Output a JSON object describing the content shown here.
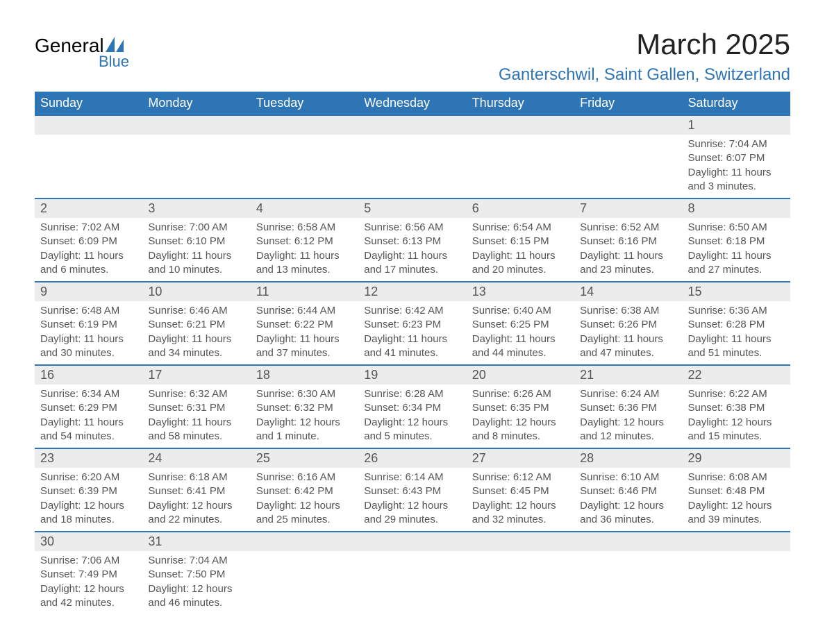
{
  "logo": {
    "text1": "General",
    "text2": "Blue",
    "icon_color": "#2e75b6"
  },
  "title": "March 2025",
  "location": "Ganterschwil, Saint Gallen, Switzerland",
  "colors": {
    "header_bg": "#2e75b6",
    "header_text": "#ffffff",
    "daynum_bg": "#ececec",
    "text": "#555555",
    "row_divider": "#2e75b6"
  },
  "day_headers": [
    "Sunday",
    "Monday",
    "Tuesday",
    "Wednesday",
    "Thursday",
    "Friday",
    "Saturday"
  ],
  "weeks": [
    [
      null,
      null,
      null,
      null,
      null,
      null,
      {
        "n": "1",
        "sr": "7:04 AM",
        "ss": "6:07 PM",
        "dl": "11 hours and 3 minutes."
      }
    ],
    [
      {
        "n": "2",
        "sr": "7:02 AM",
        "ss": "6:09 PM",
        "dl": "11 hours and 6 minutes."
      },
      {
        "n": "3",
        "sr": "7:00 AM",
        "ss": "6:10 PM",
        "dl": "11 hours and 10 minutes."
      },
      {
        "n": "4",
        "sr": "6:58 AM",
        "ss": "6:12 PM",
        "dl": "11 hours and 13 minutes."
      },
      {
        "n": "5",
        "sr": "6:56 AM",
        "ss": "6:13 PM",
        "dl": "11 hours and 17 minutes."
      },
      {
        "n": "6",
        "sr": "6:54 AM",
        "ss": "6:15 PM",
        "dl": "11 hours and 20 minutes."
      },
      {
        "n": "7",
        "sr": "6:52 AM",
        "ss": "6:16 PM",
        "dl": "11 hours and 23 minutes."
      },
      {
        "n": "8",
        "sr": "6:50 AM",
        "ss": "6:18 PM",
        "dl": "11 hours and 27 minutes."
      }
    ],
    [
      {
        "n": "9",
        "sr": "6:48 AM",
        "ss": "6:19 PM",
        "dl": "11 hours and 30 minutes."
      },
      {
        "n": "10",
        "sr": "6:46 AM",
        "ss": "6:21 PM",
        "dl": "11 hours and 34 minutes."
      },
      {
        "n": "11",
        "sr": "6:44 AM",
        "ss": "6:22 PM",
        "dl": "11 hours and 37 minutes."
      },
      {
        "n": "12",
        "sr": "6:42 AM",
        "ss": "6:23 PM",
        "dl": "11 hours and 41 minutes."
      },
      {
        "n": "13",
        "sr": "6:40 AM",
        "ss": "6:25 PM",
        "dl": "11 hours and 44 minutes."
      },
      {
        "n": "14",
        "sr": "6:38 AM",
        "ss": "6:26 PM",
        "dl": "11 hours and 47 minutes."
      },
      {
        "n": "15",
        "sr": "6:36 AM",
        "ss": "6:28 PM",
        "dl": "11 hours and 51 minutes."
      }
    ],
    [
      {
        "n": "16",
        "sr": "6:34 AM",
        "ss": "6:29 PM",
        "dl": "11 hours and 54 minutes."
      },
      {
        "n": "17",
        "sr": "6:32 AM",
        "ss": "6:31 PM",
        "dl": "11 hours and 58 minutes."
      },
      {
        "n": "18",
        "sr": "6:30 AM",
        "ss": "6:32 PM",
        "dl": "12 hours and 1 minute."
      },
      {
        "n": "19",
        "sr": "6:28 AM",
        "ss": "6:34 PM",
        "dl": "12 hours and 5 minutes."
      },
      {
        "n": "20",
        "sr": "6:26 AM",
        "ss": "6:35 PM",
        "dl": "12 hours and 8 minutes."
      },
      {
        "n": "21",
        "sr": "6:24 AM",
        "ss": "6:36 PM",
        "dl": "12 hours and 12 minutes."
      },
      {
        "n": "22",
        "sr": "6:22 AM",
        "ss": "6:38 PM",
        "dl": "12 hours and 15 minutes."
      }
    ],
    [
      {
        "n": "23",
        "sr": "6:20 AM",
        "ss": "6:39 PM",
        "dl": "12 hours and 18 minutes."
      },
      {
        "n": "24",
        "sr": "6:18 AM",
        "ss": "6:41 PM",
        "dl": "12 hours and 22 minutes."
      },
      {
        "n": "25",
        "sr": "6:16 AM",
        "ss": "6:42 PM",
        "dl": "12 hours and 25 minutes."
      },
      {
        "n": "26",
        "sr": "6:14 AM",
        "ss": "6:43 PM",
        "dl": "12 hours and 29 minutes."
      },
      {
        "n": "27",
        "sr": "6:12 AM",
        "ss": "6:45 PM",
        "dl": "12 hours and 32 minutes."
      },
      {
        "n": "28",
        "sr": "6:10 AM",
        "ss": "6:46 PM",
        "dl": "12 hours and 36 minutes."
      },
      {
        "n": "29",
        "sr": "6:08 AM",
        "ss": "6:48 PM",
        "dl": "12 hours and 39 minutes."
      }
    ],
    [
      {
        "n": "30",
        "sr": "7:06 AM",
        "ss": "7:49 PM",
        "dl": "12 hours and 42 minutes."
      },
      {
        "n": "31",
        "sr": "7:04 AM",
        "ss": "7:50 PM",
        "dl": "12 hours and 46 minutes."
      },
      null,
      null,
      null,
      null,
      null
    ]
  ],
  "labels": {
    "sunrise": "Sunrise: ",
    "sunset": "Sunset: ",
    "daylight": "Daylight: "
  }
}
